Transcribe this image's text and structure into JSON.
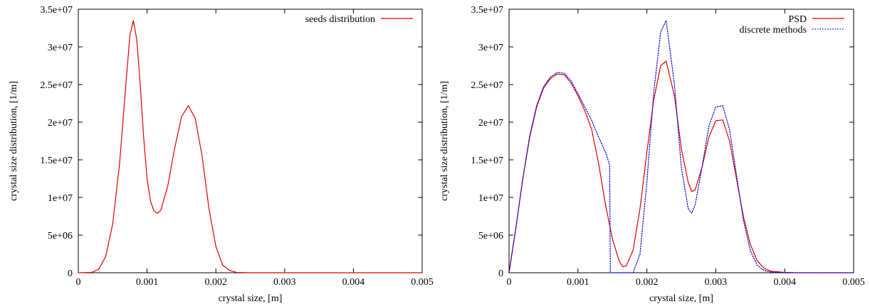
{
  "chart_data": [
    {
      "type": "line",
      "xlabel": "crystal size, [m]",
      "ylabel": "crystal size distribution, [1/m]",
      "xlim": [
        0,
        0.005
      ],
      "ylim": [
        0,
        35000000
      ],
      "xticks": [
        {
          "value": 0,
          "label": "0"
        },
        {
          "value": 0.001,
          "label": "0.001"
        },
        {
          "value": 0.002,
          "label": "0.002"
        },
        {
          "value": 0.003,
          "label": "0.003"
        },
        {
          "value": 0.004,
          "label": "0.004"
        },
        {
          "value": 0.005,
          "label": "0.005"
        }
      ],
      "yticks": [
        {
          "value": 0,
          "label": "0"
        },
        {
          "value": 5000000,
          "label": "5e+06"
        },
        {
          "value": 10000000,
          "label": "1e+07"
        },
        {
          "value": 15000000,
          "label": "1.5e+07"
        },
        {
          "value": 20000000,
          "label": "2e+07"
        },
        {
          "value": 25000000,
          "label": "2.5e+07"
        },
        {
          "value": 30000000,
          "label": "3e+07"
        },
        {
          "value": 35000000,
          "label": "3.5e+07"
        }
      ],
      "grid": false,
      "legend_position": "top-right",
      "series": [
        {
          "name": "seeds distribution",
          "color": "#e00000",
          "dash": "solid",
          "points": [
            [
              0,
              0
            ],
            [
              0.0002,
              50000
            ],
            [
              0.0003,
              500000
            ],
            [
              0.0004,
              2200000
            ],
            [
              0.0005,
              6500000
            ],
            [
              0.0006,
              14500000
            ],
            [
              0.0007,
              26000000
            ],
            [
              0.00075,
              31500000
            ],
            [
              0.0008,
              33500000
            ],
            [
              0.00085,
              31000000
            ],
            [
              0.0009,
              25000000
            ],
            [
              0.00095,
              18000000
            ],
            [
              0.001,
              12500000
            ],
            [
              0.00105,
              9500000
            ],
            [
              0.0011,
              8200000
            ],
            [
              0.00115,
              7900000
            ],
            [
              0.0012,
              8300000
            ],
            [
              0.0013,
              11500000
            ],
            [
              0.0014,
              16500000
            ],
            [
              0.0015,
              20700000
            ],
            [
              0.0016,
              22200000
            ],
            [
              0.0017,
              20500000
            ],
            [
              0.0018,
              15500000
            ],
            [
              0.0019,
              8500000
            ],
            [
              0.002,
              3500000
            ],
            [
              0.0021,
              1000000
            ],
            [
              0.0022,
              300000
            ],
            [
              0.0023,
              50000
            ],
            [
              0.0025,
              0
            ],
            [
              0.005,
              0
            ]
          ]
        }
      ]
    },
    {
      "type": "line",
      "xlabel": "crystal size, [m]",
      "ylabel": "crystal size distribution, [1/m]",
      "xlim": [
        0,
        0.005
      ],
      "ylim": [
        0,
        35000000
      ],
      "xticks": [
        {
          "value": 0,
          "label": "0"
        },
        {
          "value": 0.001,
          "label": "0.001"
        },
        {
          "value": 0.002,
          "label": "0.002"
        },
        {
          "value": 0.003,
          "label": "0.003"
        },
        {
          "value": 0.004,
          "label": "0.004"
        },
        {
          "value": 0.005,
          "label": "0.005"
        }
      ],
      "yticks": [
        {
          "value": 0,
          "label": "0"
        },
        {
          "value": 5000000,
          "label": "5e+06"
        },
        {
          "value": 10000000,
          "label": "1e+07"
        },
        {
          "value": 15000000,
          "label": "1.5e+07"
        },
        {
          "value": 20000000,
          "label": "2e+07"
        },
        {
          "value": 25000000,
          "label": "2.5e+07"
        },
        {
          "value": 30000000,
          "label": "3e+07"
        },
        {
          "value": 35000000,
          "label": "3.5e+07"
        }
      ],
      "grid": false,
      "legend_position": "top-right",
      "series": [
        {
          "name": "PSD",
          "color": "#e00000",
          "dash": "solid",
          "points": [
            [
              0,
              0
            ],
            [
              0.0001,
              6000000
            ],
            [
              0.0002,
              12500000
            ],
            [
              0.0003,
              18000000
            ],
            [
              0.0004,
              22000000
            ],
            [
              0.0005,
              24500000
            ],
            [
              0.0006,
              25800000
            ],
            [
              0.0007,
              26400000
            ],
            [
              0.0008,
              26300000
            ],
            [
              0.0009,
              25200000
            ],
            [
              0.001,
              23500000
            ],
            [
              0.0011,
              21500000
            ],
            [
              0.0012,
              19000000
            ],
            [
              0.0013,
              14500000
            ],
            [
              0.0014,
              9000000
            ],
            [
              0.0015,
              4500000
            ],
            [
              0.0016,
              1500000
            ],
            [
              0.00165,
              800000
            ],
            [
              0.0017,
              900000
            ],
            [
              0.0018,
              3000000
            ],
            [
              0.0019,
              8500000
            ],
            [
              0.002,
              16000000
            ],
            [
              0.0021,
              23000000
            ],
            [
              0.0022,
              27500000
            ],
            [
              0.00228,
              28100000
            ],
            [
              0.0024,
              23500000
            ],
            [
              0.0025,
              16500000
            ],
            [
              0.0026,
              12000000
            ],
            [
              0.00265,
              10800000
            ],
            [
              0.0027,
              11000000
            ],
            [
              0.0028,
              14000000
            ],
            [
              0.0029,
              18000000
            ],
            [
              0.003,
              20200000
            ],
            [
              0.0031,
              20300000
            ],
            [
              0.0032,
              17500000
            ],
            [
              0.0033,
              12500000
            ],
            [
              0.0034,
              7500000
            ],
            [
              0.0035,
              3800000
            ],
            [
              0.0036,
              1600000
            ],
            [
              0.0037,
              600000
            ],
            [
              0.0038,
              200000
            ],
            [
              0.004,
              50000
            ],
            [
              0.0042,
              0
            ],
            [
              0.005,
              0
            ]
          ]
        },
        {
          "name": "discrete methods",
          "color": "#0000e0",
          "dash": "dotted",
          "points": [
            [
              0,
              0
            ],
            [
              0.0001,
              6000000
            ],
            [
              0.0002,
              12500000
            ],
            [
              0.0003,
              18200000
            ],
            [
              0.0004,
              22200000
            ],
            [
              0.0005,
              24700000
            ],
            [
              0.0006,
              26000000
            ],
            [
              0.0007,
              26600000
            ],
            [
              0.0008,
              26500000
            ],
            [
              0.0009,
              25500000
            ],
            [
              0.001,
              23800000
            ],
            [
              0.0011,
              22000000
            ],
            [
              0.0012,
              20200000
            ],
            [
              0.0013,
              18000000
            ],
            [
              0.0014,
              16000000
            ],
            [
              0.00146,
              14300000
            ],
            [
              0.00147,
              0
            ],
            [
              0.0017,
              0
            ],
            [
              0.0018,
              0
            ],
            [
              0.0019,
              2500000
            ],
            [
              0.002,
              12000000
            ],
            [
              0.0021,
              24000000
            ],
            [
              0.0022,
              32000000
            ],
            [
              0.00228,
              33500000
            ],
            [
              0.0024,
              25000000
            ],
            [
              0.0025,
              14000000
            ],
            [
              0.0026,
              8500000
            ],
            [
              0.00265,
              7900000
            ],
            [
              0.0027,
              9000000
            ],
            [
              0.0028,
              14000000
            ],
            [
              0.0029,
              19500000
            ],
            [
              0.003,
              22000000
            ],
            [
              0.0031,
              22200000
            ],
            [
              0.0032,
              19000000
            ],
            [
              0.0033,
              13000000
            ],
            [
              0.0034,
              7000000
            ],
            [
              0.0035,
              3000000
            ],
            [
              0.0036,
              1000000
            ],
            [
              0.0037,
              300000
            ],
            [
              0.0038,
              100000
            ],
            [
              0.004,
              0
            ],
            [
              0.005,
              0
            ]
          ]
        }
      ]
    }
  ]
}
